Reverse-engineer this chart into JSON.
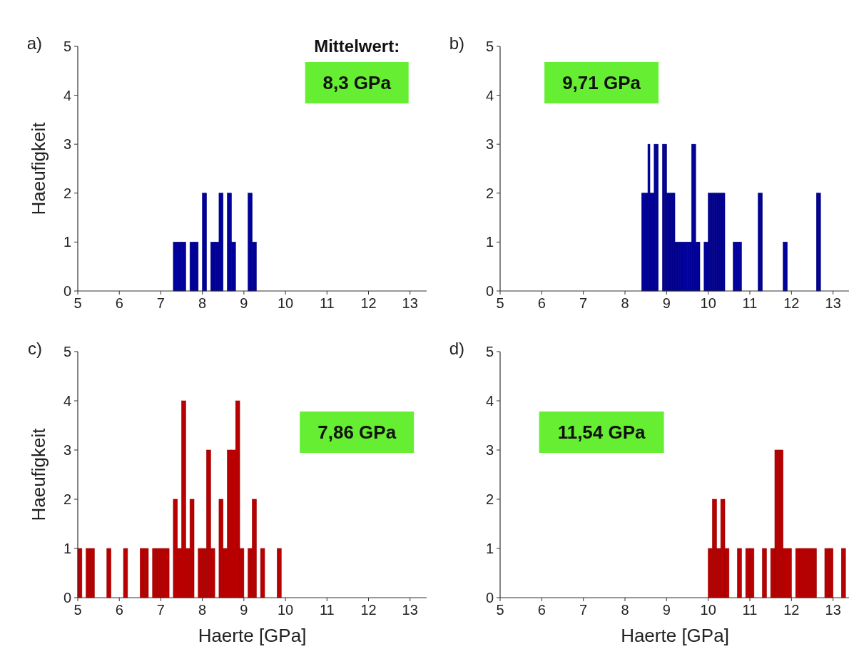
{
  "chart_data": [
    {
      "type": "histogram",
      "title": "a)",
      "ylabel": "Haeufigkeit",
      "color": "#00009a",
      "annotations": [
        "Mittelwert:",
        "8,3 GPa"
      ],
      "xlim": [
        5,
        13.4
      ],
      "xticks": [
        5,
        6,
        7,
        8,
        9,
        10,
        11,
        12,
        13
      ],
      "ylim": [
        0,
        5
      ],
      "yticks": [
        0,
        1,
        2,
        3,
        4,
        5
      ],
      "bins": [
        7.3,
        7.4,
        7.5,
        7.6,
        7.7,
        7.8,
        7.9,
        8.0,
        8.1,
        8.2,
        8.3,
        8.4,
        8.5,
        8.6,
        8.7,
        8.8,
        8.9,
        9.0,
        9.1,
        9.2,
        9.3
      ],
      "values": [
        1,
        1,
        1,
        0,
        1,
        1,
        0,
        2,
        0,
        1,
        1,
        2,
        0,
        2,
        1,
        0,
        0,
        0,
        2,
        1
      ]
    },
    {
      "type": "histogram",
      "title": "b)",
      "color": "#00009a",
      "annotations": [
        "9,71 GPa"
      ],
      "xlim": [
        5,
        13.4
      ],
      "xticks": [
        5,
        6,
        7,
        8,
        9,
        10,
        11,
        12,
        13
      ],
      "ylim": [
        0,
        5
      ],
      "yticks": [
        0,
        1,
        2,
        3,
        4,
        5
      ],
      "bins": [
        8.4,
        8.45,
        8.5,
        8.55,
        8.6,
        8.65,
        8.7,
        8.75,
        8.8,
        8.85,
        8.9,
        8.95,
        9.0,
        9.05,
        9.1,
        9.15,
        9.2,
        9.25,
        9.3,
        9.35,
        9.4,
        9.45,
        9.5,
        9.55,
        9.6,
        9.65,
        9.7,
        9.75,
        9.8,
        9.85,
        9.9,
        9.95,
        10.0,
        10.05,
        10.1,
        10.15,
        10.2,
        10.25,
        10.3,
        10.35,
        10.4,
        10.45,
        10.5,
        10.55,
        10.6,
        10.65,
        10.7,
        10.75,
        10.8,
        10.85,
        10.9,
        10.95,
        11.0,
        11.05,
        11.1,
        11.15,
        11.2,
        11.25,
        11.3,
        11.35,
        11.4,
        11.45,
        11.5,
        11.55,
        11.6,
        11.65,
        11.7,
        11.75,
        11.8,
        11.85,
        11.9,
        11.95,
        12.0,
        12.05,
        12.1,
        12.15,
        12.2,
        12.25,
        12.3,
        12.35,
        12.4,
        12.45,
        12.5,
        12.55,
        12.6,
        12.65,
        12.7
      ],
      "values": [
        2,
        2,
        2,
        3,
        2,
        2,
        3,
        3,
        0,
        0,
        3,
        3,
        2,
        2,
        2,
        2,
        1,
        1,
        1,
        1,
        1,
        1,
        1,
        1,
        3,
        3,
        1,
        1,
        0,
        0,
        1,
        1,
        2,
        2,
        2,
        2,
        2,
        2,
        2,
        2,
        0,
        0,
        0,
        0,
        1,
        1,
        1,
        1,
        0,
        0,
        0,
        0,
        0,
        0,
        0,
        0,
        2,
        2,
        0,
        0,
        0,
        0,
        0,
        0,
        0,
        0,
        0,
        0,
        1,
        1,
        0,
        0,
        0,
        0,
        0,
        0,
        0,
        0,
        0,
        0,
        0,
        0,
        0,
        0,
        2,
        2
      ]
    },
    {
      "type": "histogram",
      "title": "c)",
      "xlabel": "Haerte [GPa]",
      "ylabel": "Haeufigkeit",
      "color": "#b80000",
      "annotations": [
        "7,86 GPa"
      ],
      "xlim": [
        5,
        13.4
      ],
      "xticks": [
        5,
        6,
        7,
        8,
        9,
        10,
        11,
        12,
        13
      ],
      "ylim": [
        0,
        5
      ],
      "yticks": [
        0,
        1,
        2,
        3,
        4,
        5
      ],
      "bins": [
        5.0,
        5.1,
        5.2,
        5.3,
        5.4,
        5.5,
        5.6,
        5.7,
        5.8,
        5.9,
        6.0,
        6.1,
        6.2,
        6.3,
        6.4,
        6.5,
        6.6,
        6.7,
        6.8,
        6.9,
        7.0,
        7.1,
        7.2,
        7.3,
        7.4,
        7.5,
        7.6,
        7.7,
        7.8,
        7.9,
        8.0,
        8.1,
        8.2,
        8.3,
        8.4,
        8.5,
        8.6,
        8.7,
        8.8,
        8.9,
        9.0,
        9.1,
        9.2,
        9.3,
        9.4,
        9.5,
        9.6,
        9.7,
        9.8,
        9.9
      ],
      "values": [
        1,
        0,
        1,
        1,
        0,
        0,
        0,
        1,
        0,
        0,
        0,
        1,
        0,
        0,
        0,
        1,
        1,
        0,
        1,
        1,
        1,
        1,
        0,
        2,
        1,
        4,
        1,
        2,
        0,
        1,
        1,
        3,
        1,
        0,
        2,
        1,
        3,
        3,
        4,
        1,
        0,
        1,
        2,
        0,
        1,
        0,
        0,
        0,
        1
      ]
    },
    {
      "type": "histogram",
      "title": "d)",
      "xlabel": "Haerte [GPa]",
      "color": "#b80000",
      "annotations": [
        "11,54 GPa"
      ],
      "xlim": [
        5,
        13.4
      ],
      "xticks": [
        5,
        6,
        7,
        8,
        9,
        10,
        11,
        12,
        13
      ],
      "ylim": [
        0,
        5
      ],
      "yticks": [
        0,
        1,
        2,
        3,
        4,
        5
      ],
      "bins": [
        10.0,
        10.1,
        10.2,
        10.3,
        10.4,
        10.5,
        10.6,
        10.7,
        10.8,
        10.9,
        11.0,
        11.1,
        11.2,
        11.3,
        11.4,
        11.5,
        11.6,
        11.7,
        11.8,
        11.9,
        12.0,
        12.1,
        12.2,
        12.3,
        12.4,
        12.5,
        12.6,
        12.7,
        12.8,
        12.9,
        13.0,
        13.1,
        13.2,
        13.3
      ],
      "values": [
        1,
        2,
        1,
        2,
        1,
        0,
        0,
        1,
        0,
        1,
        1,
        0,
        0,
        1,
        0,
        1,
        3,
        3,
        1,
        1,
        0,
        1,
        1,
        1,
        1,
        1,
        0,
        0,
        1,
        1,
        0,
        0,
        1
      ]
    }
  ]
}
